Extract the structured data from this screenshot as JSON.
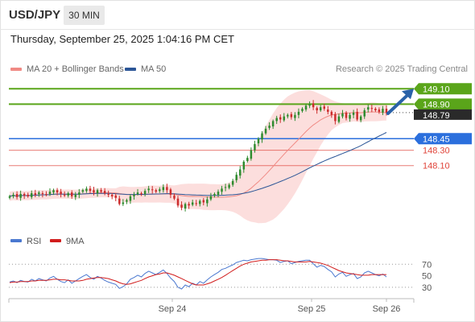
{
  "header": {
    "symbol": "USD/JPY",
    "timeframe": "30 MIN",
    "datetime": "Thursday, September 25, 2025 1:04:16 PM CET"
  },
  "legend": {
    "ma20": {
      "label": "MA 20 + Bollinger Bands",
      "color": "#f08a84"
    },
    "ma50": {
      "label": "MA 50",
      "color": "#2c5697"
    },
    "credit": "Research © 2025 Trading Central"
  },
  "colors": {
    "resistance": "#5aa51a",
    "pivot": "#2b6fdd",
    "support": "#e0443a",
    "candle_up": "#2e8b2e",
    "candle_down": "#cc2b2b",
    "band_fill": "#fbd3d2",
    "arrow": "#2a62a8",
    "rsi": "#4a78d0",
    "rsi_ma": "#d11d1d"
  },
  "chart_data": [
    {
      "type": "candlestick",
      "title": "USD/JPY",
      "x_ticks": [
        "Sep 24",
        "Sep 25",
        "Sep 26"
      ],
      "ylim": [
        147.3,
        149.25
      ],
      "last_price": 148.79,
      "levels": [
        {
          "label": "149.10",
          "value": 149.1,
          "kind": "resistance"
        },
        {
          "label": "148.90",
          "value": 148.9,
          "kind": "resistance"
        },
        {
          "label": "148.45",
          "value": 148.45,
          "kind": "pivot"
        },
        {
          "label": "148.30",
          "value": 148.3,
          "kind": "support"
        },
        {
          "label": "148.10",
          "value": 148.1,
          "kind": "support"
        }
      ],
      "last_label": "148.79",
      "series": [
        {
          "name": "MA 20 + Bollinger Bands"
        },
        {
          "name": "MA 50"
        }
      ],
      "close": [
        147.7,
        147.72,
        147.69,
        147.73,
        147.71,
        147.7,
        147.74,
        147.72,
        147.75,
        147.73,
        147.72,
        147.76,
        147.78,
        147.75,
        147.73,
        147.71,
        147.74,
        147.7,
        147.72,
        147.75,
        147.78,
        147.8,
        147.77,
        147.75,
        147.78,
        147.76,
        147.74,
        147.72,
        147.7,
        147.68,
        147.6,
        147.62,
        147.65,
        147.7,
        147.72,
        147.75,
        147.73,
        147.77,
        147.8,
        147.78,
        147.76,
        147.79,
        147.82,
        147.78,
        147.72,
        147.67,
        147.58,
        147.55,
        147.6,
        147.58,
        147.62,
        147.6,
        147.64,
        147.62,
        147.66,
        147.7,
        147.73,
        147.76,
        147.8,
        147.82,
        147.85,
        147.9,
        147.98,
        148.05,
        148.15,
        148.2,
        148.3,
        148.38,
        148.45,
        148.52,
        148.58,
        148.62,
        148.68,
        148.72,
        148.7,
        148.74,
        148.76,
        148.73,
        148.76,
        148.8,
        148.84,
        148.88,
        148.9,
        148.86,
        148.82,
        148.86,
        148.84,
        148.8,
        148.76,
        148.68,
        148.74,
        148.78,
        148.72,
        148.76,
        148.79,
        148.7,
        148.74,
        148.82,
        148.86,
        148.84,
        148.82,
        148.8,
        148.84,
        148.79
      ]
    },
    {
      "type": "line",
      "title": "RSI",
      "series": [
        {
          "name": "RSI",
          "values": [
            39,
            41,
            38,
            42,
            40,
            39,
            44,
            41,
            45,
            43,
            41,
            46,
            49,
            44,
            40,
            38,
            43,
            37,
            41,
            45,
            49,
            52,
            47,
            44,
            49,
            46,
            42,
            39,
            37,
            35,
            28,
            31,
            36,
            44,
            47,
            51,
            48,
            54,
            58,
            55,
            52,
            56,
            60,
            54,
            46,
            40,
            30,
            27,
            34,
            31,
            37,
            34,
            40,
            37,
            43,
            48,
            52,
            56,
            61,
            63,
            66,
            69,
            73,
            75,
            77,
            76,
            78,
            79,
            80,
            80,
            79,
            78,
            78,
            77,
            73,
            75,
            76,
            71,
            73,
            75,
            76,
            77,
            77,
            71,
            65,
            68,
            66,
            61,
            57,
            48,
            53,
            56,
            49,
            52,
            54,
            45,
            48,
            55,
            58,
            55,
            52,
            50,
            53,
            48
          ]
        },
        {
          "name": "9MA",
          "values": [
            38,
            39,
            39,
            40,
            40,
            40,
            41,
            41,
            42,
            42,
            42,
            43,
            44,
            44,
            43,
            43,
            42,
            41,
            41,
            41,
            42,
            44,
            45,
            46,
            47,
            47,
            46,
            45,
            43,
            41,
            38,
            36,
            35,
            36,
            38,
            40,
            42,
            45,
            48,
            50,
            52,
            53,
            55,
            55,
            53,
            51,
            48,
            45,
            42,
            39,
            36,
            34,
            34,
            34,
            36,
            38,
            41,
            44,
            47,
            51,
            55,
            59,
            63,
            67,
            70,
            72,
            74,
            75,
            76,
            77,
            77,
            78,
            78,
            78,
            77,
            76,
            76,
            75,
            74,
            74,
            74,
            74,
            75,
            74,
            73,
            72,
            70,
            68,
            65,
            62,
            59,
            57,
            55,
            54,
            53,
            52,
            51,
            51,
            51,
            52,
            52,
            52,
            52,
            52
          ]
        }
      ],
      "ylim": [
        20,
        90
      ],
      "y_ticks": [
        "70",
        "50",
        "30"
      ],
      "ref_lines": [
        70,
        30
      ]
    }
  ]
}
